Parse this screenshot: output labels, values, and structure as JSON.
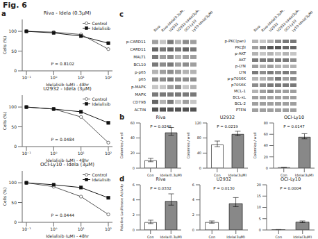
{
  "title": "Fig. 6",
  "chart_data": [
    {
      "panel": "a",
      "type": "line",
      "title": "Riva - Idela (0.3μM)",
      "xlabel": "Idelalisib (μM) - 48hr",
      "ylabel": "Cells (%)",
      "categories": [
        "10⁻¹",
        "10⁰",
        "10¹",
        "10²"
      ],
      "series": [
        {
          "name": "Control",
          "color": "#555555",
          "marker": "circle",
          "values": [
            100,
            98,
            92,
            55
          ]
        },
        {
          "name": "Idelalisib",
          "color": "#111111",
          "marker": "square",
          "values": [
            100,
            96,
            88,
            70
          ]
        }
      ],
      "ylim": [
        0,
        130
      ],
      "yticks": [
        0,
        50,
        100
      ],
      "legend": "upper right",
      "annotations": [
        "P = 0.8102"
      ]
    },
    {
      "panel": "a",
      "type": "line",
      "title": "U2932 - Idela (3μM)",
      "xlabel": "Idelalisib (μM) - 48hr",
      "ylabel": "Cells (%)",
      "categories": [
        "10⁻¹",
        "10⁰",
        "10¹",
        "10²"
      ],
      "series": [
        {
          "name": "Control",
          "color": "#555555",
          "marker": "circle",
          "values": [
            100,
            95,
            75,
            10
          ]
        },
        {
          "name": "Idelalisib",
          "color": "#111111",
          "marker": "square",
          "values": [
            100,
            95,
            88,
            60
          ]
        }
      ],
      "ylim": [
        0,
        130
      ],
      "yticks": [
        0,
        50,
        100
      ],
      "legend": "upper right",
      "annotations": [
        "P = 0.0484"
      ]
    },
    {
      "panel": "a",
      "type": "line",
      "title": "OCI-Ly10 - Idela (3μM)",
      "xlabel": "Idelalisib (μM) - 48hr",
      "ylabel": "Cells (%)",
      "categories": [
        "10⁻¹",
        "10⁰",
        "10¹",
        "10²"
      ],
      "series": [
        {
          "name": "Control",
          "color": "#555555",
          "marker": "circle",
          "values": [
            100,
            90,
            65,
            20
          ]
        },
        {
          "name": "Idelalisib",
          "color": "#111111",
          "marker": "square",
          "values": [
            100,
            95,
            88,
            62
          ]
        }
      ],
      "ylim": [
        0,
        130
      ],
      "yticks": [
        0,
        50,
        100
      ],
      "legend": "upper right",
      "annotations": [
        "P = 0.0444"
      ]
    },
    {
      "panel": "b",
      "type": "bar",
      "title": "Riva",
      "ylabel": "Colonries / well",
      "categories": [
        "Con",
        "Idela(0.3μM)"
      ],
      "values": [
        10,
        47
      ],
      "error_minus": [
        1.5,
        3.5
      ],
      "error_plus": [
        3,
        7
      ],
      "colors": [
        "#ffffff",
        "#888888"
      ],
      "ylim": [
        0,
        60
      ],
      "yticks": [
        0,
        20,
        40,
        60
      ],
      "annotations": [
        "P = 0.0248"
      ]
    },
    {
      "panel": "b",
      "type": "bar",
      "title": "U2932",
      "ylabel": "Colonries / well",
      "categories": [
        "Con",
        "Idela(3μM)"
      ],
      "values": [
        62,
        90
      ],
      "error_minus": [
        5,
        4
      ],
      "error_plus": [
        10,
        8
      ],
      "colors": [
        "#ffffff",
        "#888888"
      ],
      "ylim": [
        0,
        120
      ],
      "yticks": [
        0,
        40,
        80,
        120
      ],
      "annotations": [
        "P = 0.0219"
      ]
    },
    {
      "panel": "b",
      "type": "bar",
      "title": "OCI-Ly10",
      "ylabel": "Colonries / well",
      "categories": [
        "Con",
        "Idela(3μM)"
      ],
      "values": [
        1,
        55
      ],
      "error_minus": [
        0.25,
        3
      ],
      "error_plus": [
        0.5,
        6
      ],
      "colors": [
        "#ffffff",
        "#888888"
      ],
      "ylim": [
        0,
        80
      ],
      "yticks": [
        0,
        20,
        40,
        60,
        80
      ],
      "annotations": [
        "P = 0.0147"
      ]
    },
    {
      "panel": "c",
      "type": "heatmap",
      "categories": [
        "Riva",
        "Riva-Idela(0.3μM)",
        "U2932",
        "U2932-Idela(3μM)",
        "OCI-Ly10",
        "Ly10-Idela(3μM)"
      ],
      "rows": [
        "p-CARD11",
        "CARD11",
        "MALT1",
        "BCL10",
        "p-p65",
        "p65",
        "p-MAPK",
        "MAPK",
        "CD79B",
        "ACTIN"
      ],
      "cells": [
        [
          0.5,
          0.3,
          0.7,
          0.4,
          0.6,
          0.5
        ],
        [
          0.8,
          0.7,
          0.8,
          0.7,
          0.8,
          0.7
        ],
        [
          0.7,
          0.5,
          0.6,
          0.4,
          0.5,
          0.5
        ],
        [
          0.7,
          0.6,
          0.7,
          0.5,
          0.6,
          0.5
        ],
        [
          0.4,
          0.5,
          0.6,
          0.5,
          0.4,
          0.4
        ],
        [
          0.6,
          0.6,
          0.7,
          0.6,
          0.6,
          0.6
        ],
        [
          0.3,
          0.3,
          0.5,
          0.6,
          0.3,
          0.4
        ],
        [
          0.7,
          0.7,
          0.7,
          0.7,
          0.7,
          0.7
        ],
        [
          0.8,
          0.4,
          0.7,
          0.3,
          0.5,
          0.3
        ],
        [
          0.9,
          0.9,
          0.9,
          0.9,
          0.9,
          0.9
        ]
      ]
    },
    {
      "panel": "c",
      "type": "heatmap",
      "categories": [
        "Riva",
        "Riva-Idela(0.3μM)",
        "U2932",
        "U2932-Idela(3μM)",
        "OCI-Ly10",
        "Ly10-Idela(3μM)"
      ],
      "rows": [
        "p-PKC(pan)",
        "PKCβI",
        "p-AKT",
        "AKT",
        "p-LYN",
        "LYN",
        "p-p70S6K",
        "p70S6K",
        "MCL-1",
        "BCL-xL",
        "BCL-2",
        "PTEN"
      ],
      "cells": [
        [
          0.4,
          0.3,
          0.4,
          0.6,
          0.7,
          0.7
        ],
        [
          0.5,
          0.7,
          0.9,
          0.9,
          0.8,
          0.8
        ],
        [
          0.4,
          0.3,
          0.4,
          0.3,
          0.4,
          0.3
        ],
        [
          0.7,
          0.7,
          0.7,
          0.7,
          0.7,
          0.6
        ],
        [
          0.5,
          0.4,
          0.5,
          0.4,
          0.4,
          0.4
        ],
        [
          0.7,
          0.6,
          0.7,
          0.6,
          0.7,
          0.6
        ],
        [
          0.4,
          0.4,
          0.5,
          0.7,
          0.5,
          0.6
        ],
        [
          0.6,
          0.6,
          0.7,
          0.7,
          0.7,
          0.7
        ],
        [
          0.4,
          0.5,
          0.6,
          0.5,
          0.5,
          0.5
        ],
        [
          0.5,
          0.5,
          0.5,
          0.5,
          0.5,
          0.5
        ],
        [
          0.5,
          0.5,
          0.5,
          0.5,
          0.5,
          0.5
        ],
        [
          0.5,
          0.5,
          0.5,
          0.5,
          0.5,
          0.5
        ]
      ]
    },
    {
      "panel": "d",
      "type": "bar",
      "title": "Riva",
      "ylabel": "Relative Luciferase Activity",
      "categories": [
        "Con",
        "Idela(0.3μM)"
      ],
      "values": [
        1.0,
        3.8
      ],
      "error_minus": [
        0.15,
        0.5
      ],
      "error_plus": [
        0.3,
        1.0
      ],
      "colors": [
        "#ffffff",
        "#888888"
      ],
      "ylim": [
        0,
        6
      ],
      "yticks": [
        0,
        2,
        4,
        6
      ],
      "annotations": [
        "P = 0.0332"
      ]
    },
    {
      "panel": "d",
      "type": "bar",
      "title": "U2932",
      "categories": [
        "Con",
        "Idela(3μM)"
      ],
      "values": [
        1.0,
        3.5
      ],
      "error_minus": [
        0.1,
        0.4
      ],
      "error_plus": [
        0.2,
        0.8
      ],
      "colors": [
        "#ffffff",
        "#888888"
      ],
      "ylim": [
        0,
        6
      ],
      "yticks": [
        0,
        2,
        4,
        6
      ],
      "annotations": [
        "P = 0.0130"
      ]
    },
    {
      "panel": "d",
      "type": "bar",
      "title": "OCI-Ly10",
      "categories": [
        "Con",
        "Idela(3μM)"
      ],
      "values": [
        0.15,
        3.5
      ],
      "error_minus": [
        0.025,
        0.25
      ],
      "error_plus": [
        0.05,
        0.5
      ],
      "colors": [
        "#ffffff",
        "#888888"
      ],
      "ylim": [
        0,
        20
      ],
      "yticks": [
        0,
        5,
        10,
        15,
        20
      ],
      "annotations": [
        "P = 0.0004"
      ]
    }
  ]
}
